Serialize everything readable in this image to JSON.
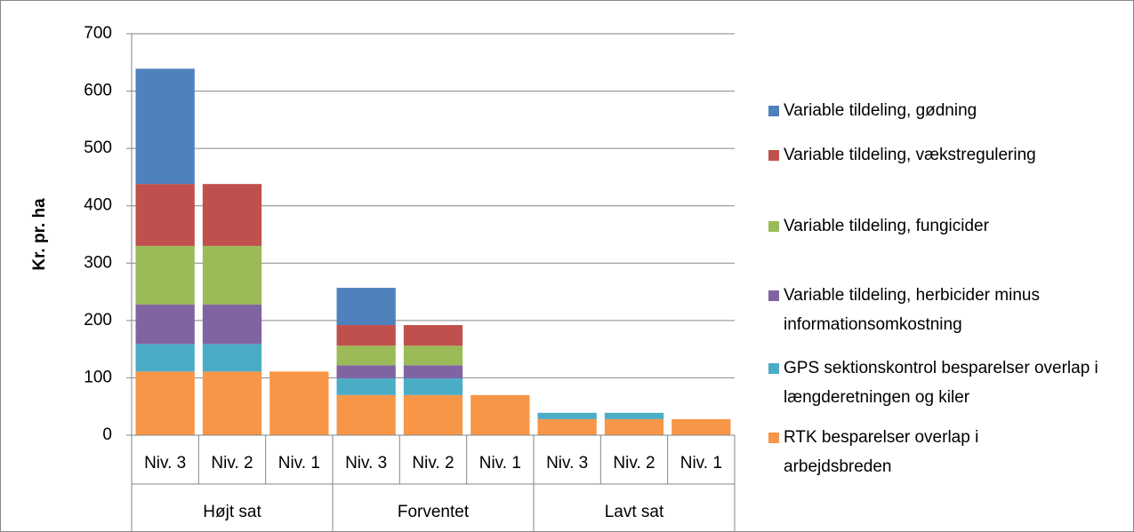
{
  "chart_data": {
    "type": "bar",
    "stacked": true,
    "y_label": "Kr. pr. ha",
    "categories": [
      "Niv. 3",
      "Niv. 2",
      "Niv. 1",
      "Niv. 3",
      "Niv. 2",
      "Niv. 1",
      "Niv. 3",
      "Niv. 2",
      "Niv. 1"
    ],
    "groups": [
      "Højt sat",
      "Forventet",
      "Lavt sat"
    ],
    "series": [
      {
        "name": "RTK besparelser overlap i arbejdsbreden",
        "color": "#F79646",
        "values": [
          111,
          111,
          111,
          70,
          70,
          70,
          28,
          28,
          28
        ]
      },
      {
        "name": "GPS sektionskontrol besparelser overlap i længderetningen og kiler",
        "color": "#4BACC6",
        "values": [
          48,
          48,
          0,
          29,
          29,
          0,
          11,
          11,
          0
        ]
      },
      {
        "name": "Variable tildeling, herbicider minus informationsomkostning",
        "color": "#8064A2",
        "values": [
          69,
          69,
          0,
          23,
          23,
          0,
          0,
          0,
          0
        ]
      },
      {
        "name": "Variable tildeling, fungicider",
        "color": "#9BBB59",
        "values": [
          102,
          102,
          0,
          34,
          34,
          0,
          0,
          0,
          0
        ]
      },
      {
        "name": "Variable tildeling, vækstregulering",
        "color": "#C0504D",
        "values": [
          108,
          108,
          0,
          36,
          36,
          0,
          0,
          0,
          0
        ]
      },
      {
        "name": "Variable tildeling, gødning",
        "color": "#4F81BD",
        "values": [
          201,
          0,
          0,
          65,
          0,
          0,
          0,
          0,
          0
        ]
      }
    ],
    "ylim": [
      0,
      700
    ],
    "yticks": [
      0,
      100,
      200,
      300,
      400,
      500,
      600,
      700
    ],
    "grid": true
  }
}
